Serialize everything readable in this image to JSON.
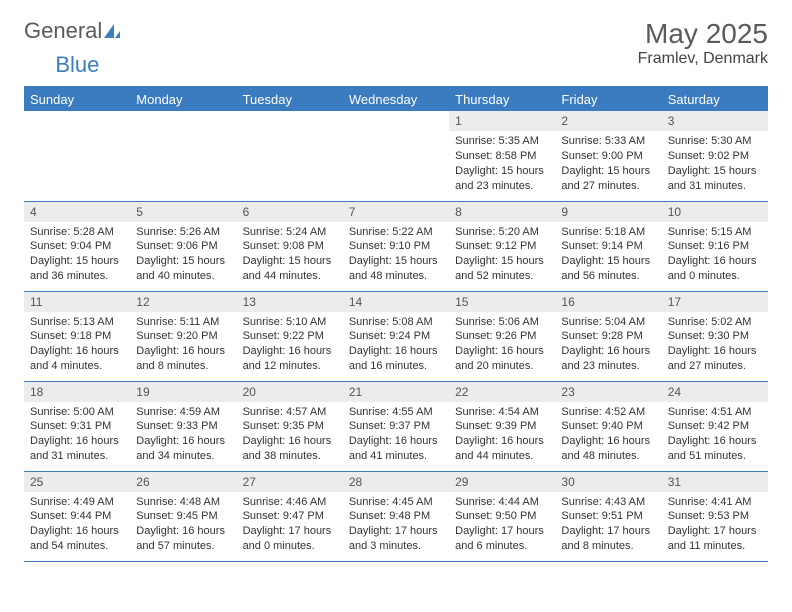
{
  "logo": {
    "text1": "General",
    "text2": "Blue"
  },
  "title": "May 2025",
  "location": "Framlev, Denmark",
  "colors": {
    "header_bg": "#3b7bbf",
    "header_text": "#ffffff",
    "daynum_bg": "#ececec",
    "border": "#3b7bbf",
    "text": "#333333",
    "title_text": "#5a5a5a"
  },
  "weekdays": [
    "Sunday",
    "Monday",
    "Tuesday",
    "Wednesday",
    "Thursday",
    "Friday",
    "Saturday"
  ],
  "weeks": [
    [
      {
        "num": "",
        "sunrise": "",
        "sunset": "",
        "daylight": ""
      },
      {
        "num": "",
        "sunrise": "",
        "sunset": "",
        "daylight": ""
      },
      {
        "num": "",
        "sunrise": "",
        "sunset": "",
        "daylight": ""
      },
      {
        "num": "",
        "sunrise": "",
        "sunset": "",
        "daylight": ""
      },
      {
        "num": "1",
        "sunrise": "Sunrise: 5:35 AM",
        "sunset": "Sunset: 8:58 PM",
        "daylight": "Daylight: 15 hours and 23 minutes."
      },
      {
        "num": "2",
        "sunrise": "Sunrise: 5:33 AM",
        "sunset": "Sunset: 9:00 PM",
        "daylight": "Daylight: 15 hours and 27 minutes."
      },
      {
        "num": "3",
        "sunrise": "Sunrise: 5:30 AM",
        "sunset": "Sunset: 9:02 PM",
        "daylight": "Daylight: 15 hours and 31 minutes."
      }
    ],
    [
      {
        "num": "4",
        "sunrise": "Sunrise: 5:28 AM",
        "sunset": "Sunset: 9:04 PM",
        "daylight": "Daylight: 15 hours and 36 minutes."
      },
      {
        "num": "5",
        "sunrise": "Sunrise: 5:26 AM",
        "sunset": "Sunset: 9:06 PM",
        "daylight": "Daylight: 15 hours and 40 minutes."
      },
      {
        "num": "6",
        "sunrise": "Sunrise: 5:24 AM",
        "sunset": "Sunset: 9:08 PM",
        "daylight": "Daylight: 15 hours and 44 minutes."
      },
      {
        "num": "7",
        "sunrise": "Sunrise: 5:22 AM",
        "sunset": "Sunset: 9:10 PM",
        "daylight": "Daylight: 15 hours and 48 minutes."
      },
      {
        "num": "8",
        "sunrise": "Sunrise: 5:20 AM",
        "sunset": "Sunset: 9:12 PM",
        "daylight": "Daylight: 15 hours and 52 minutes."
      },
      {
        "num": "9",
        "sunrise": "Sunrise: 5:18 AM",
        "sunset": "Sunset: 9:14 PM",
        "daylight": "Daylight: 15 hours and 56 minutes."
      },
      {
        "num": "10",
        "sunrise": "Sunrise: 5:15 AM",
        "sunset": "Sunset: 9:16 PM",
        "daylight": "Daylight: 16 hours and 0 minutes."
      }
    ],
    [
      {
        "num": "11",
        "sunrise": "Sunrise: 5:13 AM",
        "sunset": "Sunset: 9:18 PM",
        "daylight": "Daylight: 16 hours and 4 minutes."
      },
      {
        "num": "12",
        "sunrise": "Sunrise: 5:11 AM",
        "sunset": "Sunset: 9:20 PM",
        "daylight": "Daylight: 16 hours and 8 minutes."
      },
      {
        "num": "13",
        "sunrise": "Sunrise: 5:10 AM",
        "sunset": "Sunset: 9:22 PM",
        "daylight": "Daylight: 16 hours and 12 minutes."
      },
      {
        "num": "14",
        "sunrise": "Sunrise: 5:08 AM",
        "sunset": "Sunset: 9:24 PM",
        "daylight": "Daylight: 16 hours and 16 minutes."
      },
      {
        "num": "15",
        "sunrise": "Sunrise: 5:06 AM",
        "sunset": "Sunset: 9:26 PM",
        "daylight": "Daylight: 16 hours and 20 minutes."
      },
      {
        "num": "16",
        "sunrise": "Sunrise: 5:04 AM",
        "sunset": "Sunset: 9:28 PM",
        "daylight": "Daylight: 16 hours and 23 minutes."
      },
      {
        "num": "17",
        "sunrise": "Sunrise: 5:02 AM",
        "sunset": "Sunset: 9:30 PM",
        "daylight": "Daylight: 16 hours and 27 minutes."
      }
    ],
    [
      {
        "num": "18",
        "sunrise": "Sunrise: 5:00 AM",
        "sunset": "Sunset: 9:31 PM",
        "daylight": "Daylight: 16 hours and 31 minutes."
      },
      {
        "num": "19",
        "sunrise": "Sunrise: 4:59 AM",
        "sunset": "Sunset: 9:33 PM",
        "daylight": "Daylight: 16 hours and 34 minutes."
      },
      {
        "num": "20",
        "sunrise": "Sunrise: 4:57 AM",
        "sunset": "Sunset: 9:35 PM",
        "daylight": "Daylight: 16 hours and 38 minutes."
      },
      {
        "num": "21",
        "sunrise": "Sunrise: 4:55 AM",
        "sunset": "Sunset: 9:37 PM",
        "daylight": "Daylight: 16 hours and 41 minutes."
      },
      {
        "num": "22",
        "sunrise": "Sunrise: 4:54 AM",
        "sunset": "Sunset: 9:39 PM",
        "daylight": "Daylight: 16 hours and 44 minutes."
      },
      {
        "num": "23",
        "sunrise": "Sunrise: 4:52 AM",
        "sunset": "Sunset: 9:40 PM",
        "daylight": "Daylight: 16 hours and 48 minutes."
      },
      {
        "num": "24",
        "sunrise": "Sunrise: 4:51 AM",
        "sunset": "Sunset: 9:42 PM",
        "daylight": "Daylight: 16 hours and 51 minutes."
      }
    ],
    [
      {
        "num": "25",
        "sunrise": "Sunrise: 4:49 AM",
        "sunset": "Sunset: 9:44 PM",
        "daylight": "Daylight: 16 hours and 54 minutes."
      },
      {
        "num": "26",
        "sunrise": "Sunrise: 4:48 AM",
        "sunset": "Sunset: 9:45 PM",
        "daylight": "Daylight: 16 hours and 57 minutes."
      },
      {
        "num": "27",
        "sunrise": "Sunrise: 4:46 AM",
        "sunset": "Sunset: 9:47 PM",
        "daylight": "Daylight: 17 hours and 0 minutes."
      },
      {
        "num": "28",
        "sunrise": "Sunrise: 4:45 AM",
        "sunset": "Sunset: 9:48 PM",
        "daylight": "Daylight: 17 hours and 3 minutes."
      },
      {
        "num": "29",
        "sunrise": "Sunrise: 4:44 AM",
        "sunset": "Sunset: 9:50 PM",
        "daylight": "Daylight: 17 hours and 6 minutes."
      },
      {
        "num": "30",
        "sunrise": "Sunrise: 4:43 AM",
        "sunset": "Sunset: 9:51 PM",
        "daylight": "Daylight: 17 hours and 8 minutes."
      },
      {
        "num": "31",
        "sunrise": "Sunrise: 4:41 AM",
        "sunset": "Sunset: 9:53 PM",
        "daylight": "Daylight: 17 hours and 11 minutes."
      }
    ]
  ]
}
